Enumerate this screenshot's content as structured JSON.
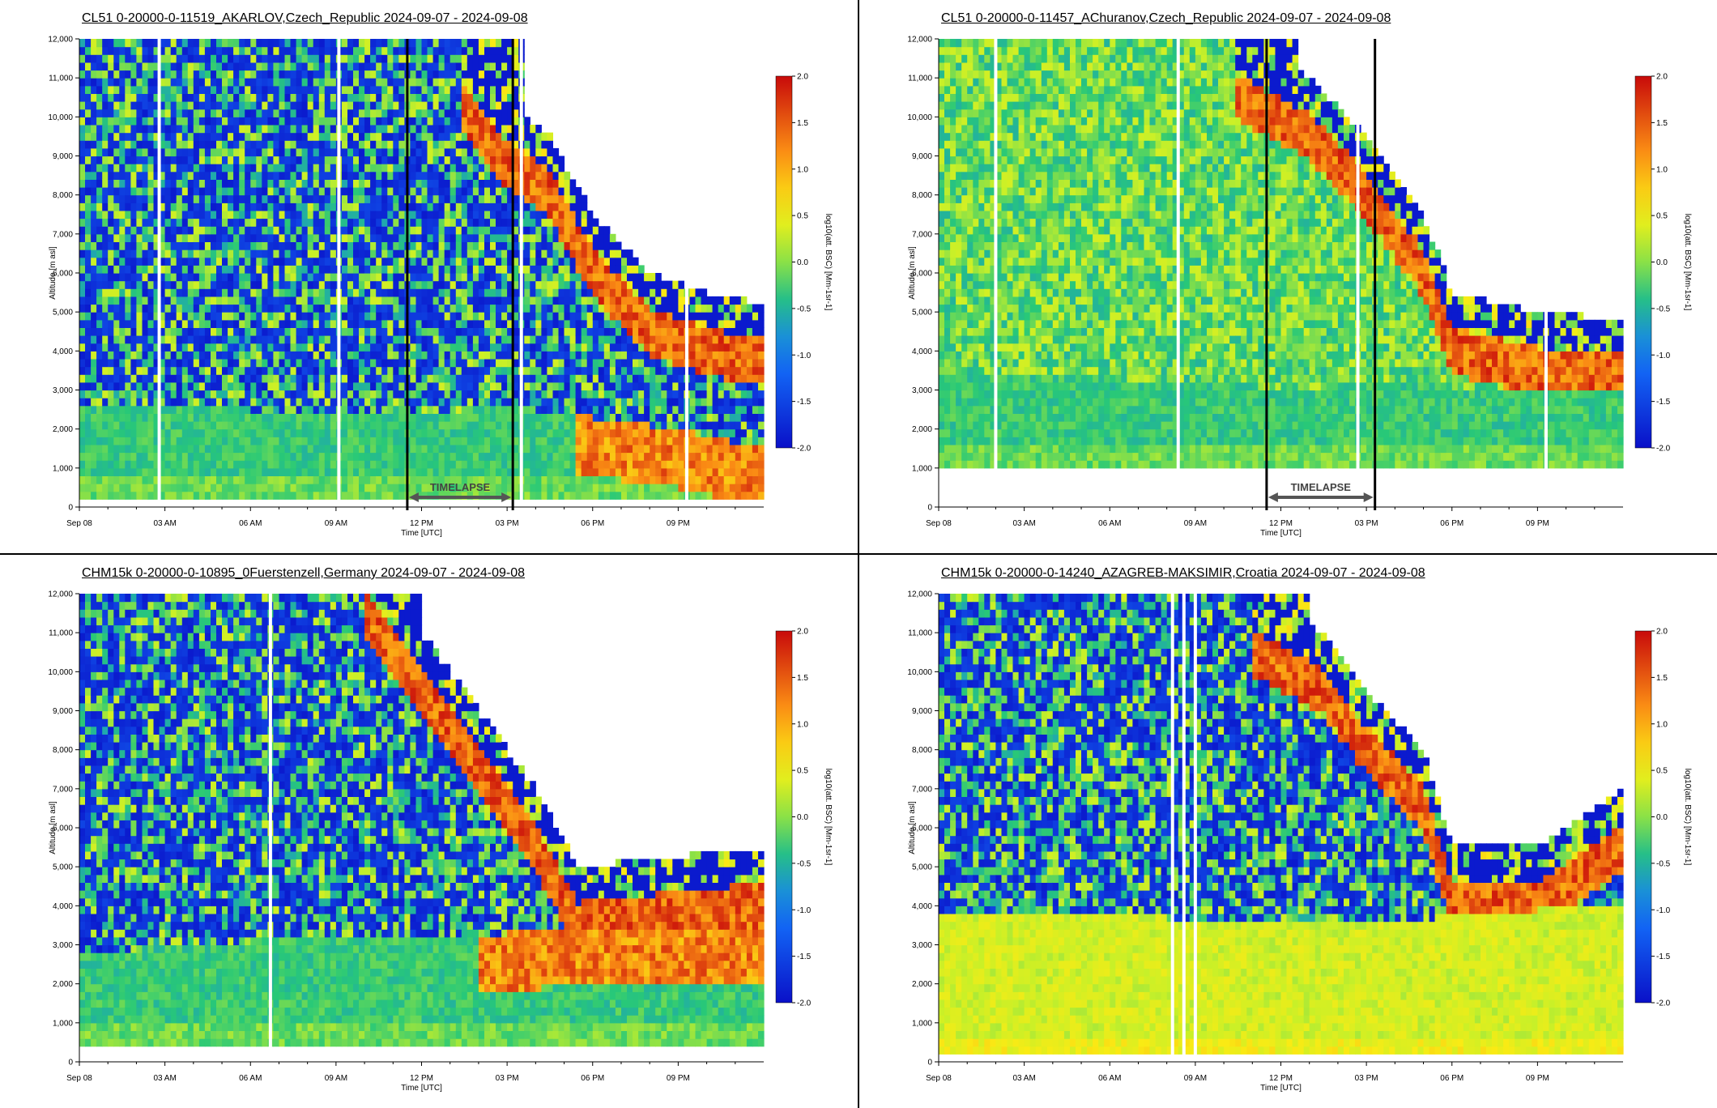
{
  "common": {
    "xlabel": "Time [UTC]",
    "ylabel": "Altitude [m asl]",
    "clabel": "log10(att. BSC) [Mm-1sr-1]",
    "x_ticks": [
      "Sep 08",
      "03 AM",
      "06 AM",
      "09 AM",
      "12 PM",
      "03 PM",
      "06 PM",
      "09 PM"
    ],
    "y_ticks": [
      "0",
      "1,000",
      "2,000",
      "3,000",
      "4,000",
      "5,000",
      "6,000",
      "7,000",
      "8,000",
      "9,000",
      "10,000",
      "11,000",
      "12,000"
    ],
    "colorbar_ticks": [
      "2.0",
      "1.5",
      "1.0",
      "0.5",
      "0.0",
      "-0.5",
      "-1.0",
      "-1.5",
      "-2.0"
    ],
    "timelapse_label": "TIMELAPSE",
    "colors": {
      "low": "#0a10c8",
      "mid": "#e8f020",
      "high": "#cc1010",
      "grid_bg": "#ffffff"
    }
  },
  "chart_data": [
    {
      "type": "heatmap",
      "title": "CL51 0-20000-0-11519_AKARLOV,Czech_Republic 2024-09-07 - 2024-09-08",
      "xlabel": "Time [UTC]",
      "ylabel": "Altitude [m asl]",
      "ylim": [
        0,
        12000
      ],
      "xlim_hours": [
        0,
        24
      ],
      "colorbar_range": [
        -2.0,
        2.0
      ],
      "colorbar_label": "log10(att. BSC) [Mm-1sr-1]",
      "surface_m": 300,
      "boundary_layer_top_m": [
        [
          0,
          2600
        ],
        [
          6,
          2500
        ],
        [
          12,
          2400
        ],
        [
          15,
          2600
        ],
        [
          18,
          2300
        ],
        [
          21,
          2000
        ],
        [
          24,
          1500
        ]
      ],
      "cloud_layer_base_m": [
        [
          13.5,
          10200
        ],
        [
          15,
          8800
        ],
        [
          16.5,
          8000
        ],
        [
          18,
          6000
        ],
        [
          20,
          4500
        ],
        [
          22,
          4000
        ],
        [
          24,
          3700
        ]
      ],
      "data_gaps_hours": [
        2.8,
        9.1,
        15.5,
        21.3
      ],
      "timelapse_hours": [
        11.5,
        15.2
      ],
      "timelapse_label": "TIMELAPSE"
    },
    {
      "type": "heatmap",
      "title": "CL51 0-20000-0-11457_AChuranov,Czech_Republic 2024-09-07 - 2024-09-08",
      "xlabel": "Time [UTC]",
      "ylabel": "Altitude [m asl]",
      "ylim": [
        0,
        12000
      ],
      "xlim_hours": [
        0,
        24
      ],
      "colorbar_range": [
        -2.0,
        2.0
      ],
      "colorbar_label": "log10(att. BSC) [Mm-1sr-1]",
      "surface_m": 1100,
      "boundary_layer_top_m": [
        [
          0,
          3500
        ],
        [
          6,
          3300
        ],
        [
          12,
          3000
        ],
        [
          15,
          3200
        ],
        [
          18,
          3100
        ],
        [
          21,
          3000
        ],
        [
          24,
          3000
        ]
      ],
      "cloud_layer_base_m": [
        [
          10.5,
          10500
        ],
        [
          13,
          9500
        ],
        [
          15,
          8000
        ],
        [
          17,
          6000
        ],
        [
          18,
          4000
        ],
        [
          21,
          3500
        ],
        [
          24,
          3300
        ]
      ],
      "data_gaps_hours": [
        2.0,
        8.4,
        14.7,
        21.3
      ],
      "timelapse_hours": [
        11.5,
        15.3
      ],
      "timelapse_label": "TIMELAPSE"
    },
    {
      "type": "heatmap",
      "title": "CHM15k 0-20000-0-10895_0Fuerstenzell,Germany 2024-09-07 - 2024-09-08",
      "xlabel": "Time [UTC]",
      "ylabel": "Altitude [m asl]",
      "ylim": [
        0,
        12000
      ],
      "xlim_hours": [
        0,
        24
      ],
      "colorbar_range": [
        -2.0,
        2.0
      ],
      "colorbar_label": "log10(att. BSC) [Mm-1sr-1]",
      "surface_m": 500,
      "boundary_layer_top_m": [
        [
          0,
          2700
        ],
        [
          6,
          3100
        ],
        [
          12,
          3200
        ],
        [
          15,
          3300
        ],
        [
          17.5,
          3500
        ],
        [
          24,
          3500
        ]
      ],
      "cloud_layer_base_m": [
        [
          10,
          11500
        ],
        [
          12,
          9500
        ],
        [
          14,
          7500
        ],
        [
          16,
          5500
        ],
        [
          17.5,
          3500
        ],
        [
          24,
          4000
        ]
      ],
      "data_gaps_hours": [
        6.7
      ],
      "timelapse_hours": [],
      "timelapse_label": ""
    },
    {
      "type": "heatmap",
      "title": "CHM15k 0-20000-0-14240_AZAGREB-MAKSIMIR,Croatia 2024-09-07 - 2024-09-08",
      "xlabel": "Time [UTC]",
      "ylabel": "Altitude [m asl]",
      "ylim": [
        0,
        12000
      ],
      "xlim_hours": [
        0,
        24
      ],
      "colorbar_range": [
        -2.0,
        2.0
      ],
      "colorbar_label": "log10(att. BSC) [Mm-1sr-1]",
      "surface_m": 150,
      "boundary_layer_top_m": [
        [
          0,
          3900
        ],
        [
          6,
          3800
        ],
        [
          8,
          3700
        ],
        [
          12,
          3600
        ],
        [
          16,
          3500
        ],
        [
          18,
          3800
        ],
        [
          24,
          4000
        ]
      ],
      "cloud_layer_base_m": [
        [
          11,
          10500
        ],
        [
          13.5,
          9500
        ],
        [
          15,
          8000
        ],
        [
          17,
          6500
        ],
        [
          18,
          4000
        ],
        [
          21,
          4000
        ],
        [
          24,
          5500
        ]
      ],
      "data_gaps_hours": [
        8.2,
        8.6,
        9.0
      ],
      "timelapse_hours": [],
      "timelapse_label": ""
    }
  ]
}
